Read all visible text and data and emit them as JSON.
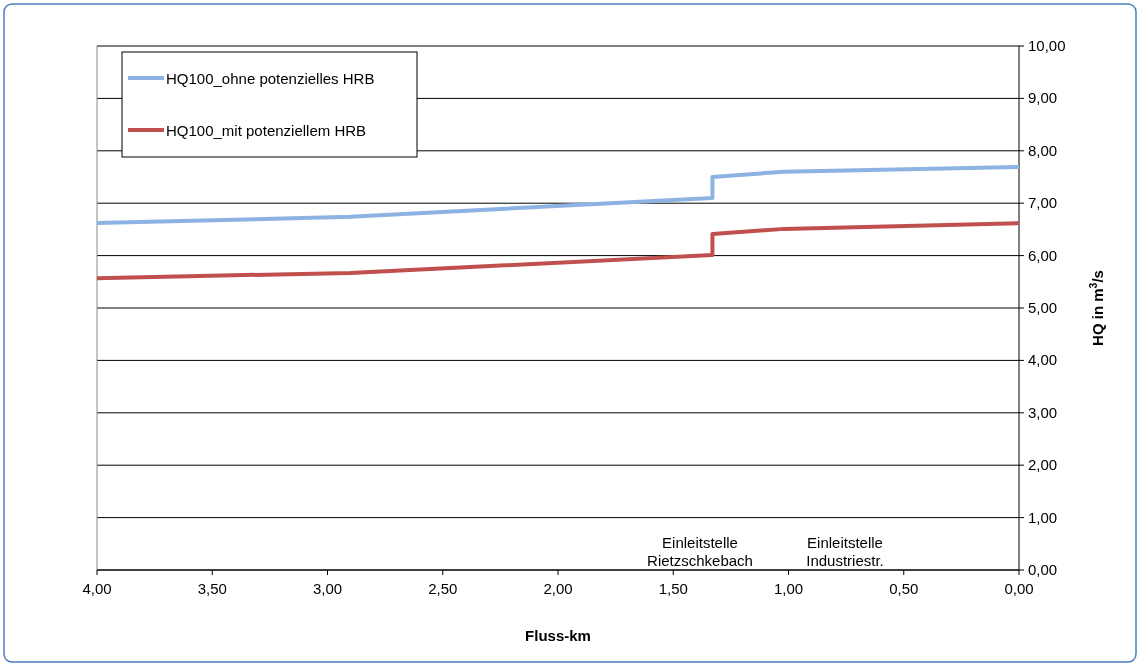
{
  "chart_data": {
    "type": "line",
    "xlabel": "Fluss-km",
    "ylabel": "HQ in m$^{3}$/s",
    "xlim": [
      4,
      0
    ],
    "ylim": [
      0,
      10
    ],
    "xticks": [
      {
        "value": 4,
        "label": "4,00"
      },
      {
        "value": 3.5,
        "label": "3,50"
      },
      {
        "value": 3,
        "label": "3,00"
      },
      {
        "value": 2.5,
        "label": "2,50"
      },
      {
        "value": 2,
        "label": "2,00"
      },
      {
        "value": 1.5,
        "label": "1,50"
      },
      {
        "value": 1,
        "label": "1,00"
      },
      {
        "value": 0.5,
        "label": "0,50"
      },
      {
        "value": 0,
        "label": "0,00"
      }
    ],
    "yticks": [
      {
        "value": 0,
        "label": "0,00"
      },
      {
        "value": 1,
        "label": "1,00"
      },
      {
        "value": 2,
        "label": "2,00"
      },
      {
        "value": 3,
        "label": "3,00"
      },
      {
        "value": 4,
        "label": "4,00"
      },
      {
        "value": 5,
        "label": "5,00"
      },
      {
        "value": 6,
        "label": "6,00"
      },
      {
        "value": 7,
        "label": "7,00"
      },
      {
        "value": 8,
        "label": "8,00"
      },
      {
        "value": 9,
        "label": "9,00"
      },
      {
        "value": 10,
        "label": "10,00"
      }
    ],
    "grid": "y",
    "legend": "top left",
    "marker": "none",
    "line_style": "solid",
    "series": [
      {
        "name": "HQ100_ohne potenzielles HRB",
        "color": "#8db3e2",
        "x": [
          4,
          2.9,
          1.33,
          1.33,
          1.02,
          0
        ],
        "values": [
          6.62,
          6.74,
          7.1,
          7.5,
          7.6,
          7.69
        ]
      },
      {
        "name": "HQ100_mit potenziellem HRB",
        "color": "#c0504d",
        "x": [
          4,
          2.9,
          1.33,
          1.33,
          1.02,
          0
        ],
        "values": [
          5.57,
          5.67,
          6.01,
          6.41,
          6.51,
          6.62
        ]
      }
    ],
    "annotations": [
      "Einleitstelle\nRietzschkebach",
      "Einleitstelle\nIndustriestr."
    ]
  }
}
